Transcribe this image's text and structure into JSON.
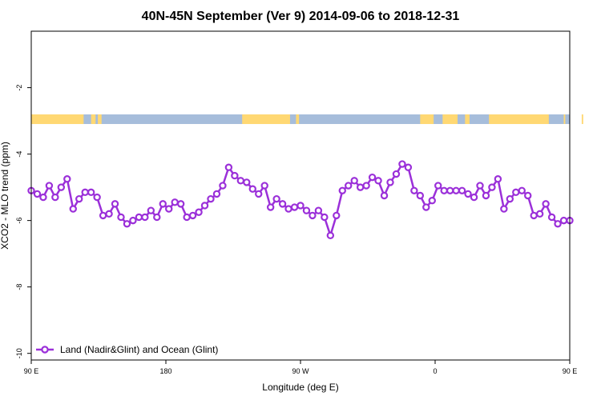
{
  "chart_data": {
    "type": "line",
    "title": "40N-45N September (Ver 9)   2014-09-06 to 2018-12-31",
    "xlabel": "Longitude (deg E)",
    "ylabel": "XCO2 - MLO trend (ppm)",
    "xlim": [
      90,
      450
    ],
    "ylim": [
      -10.2,
      -0.3
    ],
    "x_ticks": [
      {
        "value": 90,
        "label": "90 E"
      },
      {
        "value": 180,
        "label": "180"
      },
      {
        "value": 270,
        "label": "90 W"
      },
      {
        "value": 360,
        "label": "0"
      },
      {
        "value": 450,
        "label": "90 E"
      },
      {
        "value": 540,
        "label": "180"
      }
    ],
    "y_ticks": [
      {
        "value": -2,
        "label": "-2"
      },
      {
        "value": -4,
        "label": "-4"
      },
      {
        "value": -6,
        "label": "-6"
      },
      {
        "value": -8,
        "label": "-8"
      },
      {
        "value": -10,
        "label": "-10"
      }
    ],
    "grid": false,
    "legend_position": "bottom-left",
    "land_ocean_strip": {
      "y_center": -2.95,
      "land_color": "#FFD873",
      "ocean_color": "#A6BDDB",
      "land_ranges": [
        [
          90,
          125
        ],
        [
          130,
          133
        ],
        [
          134.5,
          137
        ],
        [
          231,
          263
        ],
        [
          267,
          269
        ],
        [
          350,
          359
        ],
        [
          365,
          375
        ],
        [
          380,
          383
        ],
        [
          396,
          436
        ],
        [
          446,
          447
        ],
        [
          458,
          459
        ]
      ]
    },
    "series": [
      {
        "name": "Land (Nadir&Glint) and Ocean (Glint)",
        "color": "#9B30D9",
        "points": [
          [
            90,
            -5.1
          ],
          [
            94,
            -5.2
          ],
          [
            98,
            -5.3
          ],
          [
            102,
            -4.95
          ],
          [
            106,
            -5.3
          ],
          [
            110,
            -5.0
          ],
          [
            114,
            -4.75
          ],
          [
            118,
            -5.65
          ],
          [
            122,
            -5.35
          ],
          [
            126,
            -5.15
          ],
          [
            130,
            -5.15
          ],
          [
            134,
            -5.3
          ],
          [
            138,
            -5.85
          ],
          [
            142,
            -5.8
          ],
          [
            146,
            -5.5
          ],
          [
            150,
            -5.9
          ],
          [
            154,
            -6.1
          ],
          [
            158,
            -6.0
          ],
          [
            162,
            -5.9
          ],
          [
            166,
            -5.9
          ],
          [
            170,
            -5.7
          ],
          [
            174,
            -5.9
          ],
          [
            178,
            -5.5
          ],
          [
            182,
            -5.65
          ],
          [
            186,
            -5.45
          ],
          [
            190,
            -5.5
          ],
          [
            194,
            -5.9
          ],
          [
            198,
            -5.85
          ],
          [
            202,
            -5.75
          ],
          [
            206,
            -5.55
          ],
          [
            210,
            -5.35
          ],
          [
            214,
            -5.2
          ],
          [
            218,
            -4.95
          ],
          [
            222,
            -4.4
          ],
          [
            226,
            -4.65
          ],
          [
            230,
            -4.8
          ],
          [
            234,
            -4.85
          ],
          [
            238,
            -5.05
          ],
          [
            242,
            -5.2
          ],
          [
            246,
            -4.95
          ],
          [
            250,
            -5.6
          ],
          [
            254,
            -5.35
          ],
          [
            258,
            -5.5
          ],
          [
            262,
            -5.65
          ],
          [
            266,
            -5.6
          ],
          [
            270,
            -5.55
          ],
          [
            274,
            -5.7
          ],
          [
            278,
            -5.85
          ],
          [
            282,
            -5.7
          ],
          [
            286,
            -5.9
          ],
          [
            290,
            -6.45
          ],
          [
            294,
            -5.85
          ],
          [
            298,
            -5.1
          ],
          [
            302,
            -4.95
          ],
          [
            306,
            -4.8
          ],
          [
            310,
            -5.0
          ],
          [
            314,
            -4.95
          ],
          [
            318,
            -4.7
          ],
          [
            322,
            -4.8
          ],
          [
            326,
            -5.25
          ],
          [
            330,
            -4.85
          ],
          [
            334,
            -4.6
          ],
          [
            338,
            -4.3
          ],
          [
            342,
            -4.4
          ],
          [
            346,
            -5.1
          ],
          [
            350,
            -5.25
          ],
          [
            354,
            -5.6
          ],
          [
            358,
            -5.4
          ],
          [
            362,
            -4.95
          ],
          [
            366,
            -5.1
          ],
          [
            370,
            -5.1
          ],
          [
            374,
            -5.1
          ],
          [
            378,
            -5.1
          ],
          [
            382,
            -5.2
          ],
          [
            386,
            -5.3
          ],
          [
            390,
            -4.95
          ],
          [
            394,
            -5.25
          ],
          [
            398,
            -5.0
          ],
          [
            402,
            -4.75
          ],
          [
            406,
            -5.65
          ],
          [
            410,
            -5.35
          ],
          [
            414,
            -5.15
          ],
          [
            418,
            -5.1
          ],
          [
            422,
            -5.25
          ],
          [
            426,
            -5.85
          ],
          [
            430,
            -5.8
          ],
          [
            434,
            -5.5
          ],
          [
            438,
            -5.9
          ],
          [
            442,
            -6.1
          ],
          [
            446,
            -6.0
          ],
          [
            450,
            -6.0
          ]
        ]
      }
    ]
  }
}
